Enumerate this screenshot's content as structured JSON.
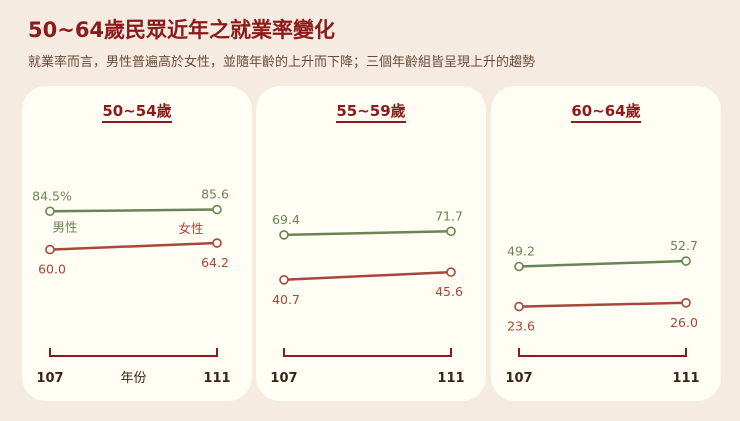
{
  "header": {
    "title": "50~64歲民眾近年之就業率變化",
    "subtitle": "就業率而言，男性普遍高於女性，並隨年齡的上升而下降；三個年齡組皆呈現上升的趨勢"
  },
  "colors": {
    "male": "#6b8454",
    "female": "#a8473a",
    "axis": "#8b1a1a",
    "text_dark": "#3a2418"
  },
  "chart_data": [
    {
      "type": "line",
      "title": "50~54歲",
      "x": [
        "107",
        "111"
      ],
      "xlabel": "年份",
      "series": [
        {
          "name": "男性",
          "values": [
            84.5,
            85.6
          ],
          "labels": [
            "84.5%",
            "85.6"
          ]
        },
        {
          "name": "女性",
          "values": [
            60.0,
            64.2
          ],
          "labels": [
            "60.0",
            "64.2"
          ]
        }
      ]
    },
    {
      "type": "line",
      "title": "55~59歲",
      "x": [
        "107",
        "111"
      ],
      "series": [
        {
          "values": [
            69.4,
            71.7
          ],
          "labels": [
            "69.4",
            "71.7"
          ]
        },
        {
          "values": [
            40.7,
            45.6
          ],
          "labels": [
            "40.7",
            "45.6"
          ]
        }
      ]
    },
    {
      "type": "line",
      "title": "60~64歲",
      "x": [
        "107",
        "111"
      ],
      "series": [
        {
          "values": [
            49.2,
            52.7
          ],
          "labels": [
            "49.2",
            "52.7"
          ]
        },
        {
          "values": [
            23.6,
            26.0
          ],
          "labels": [
            "23.6",
            "26.0"
          ]
        }
      ]
    }
  ]
}
